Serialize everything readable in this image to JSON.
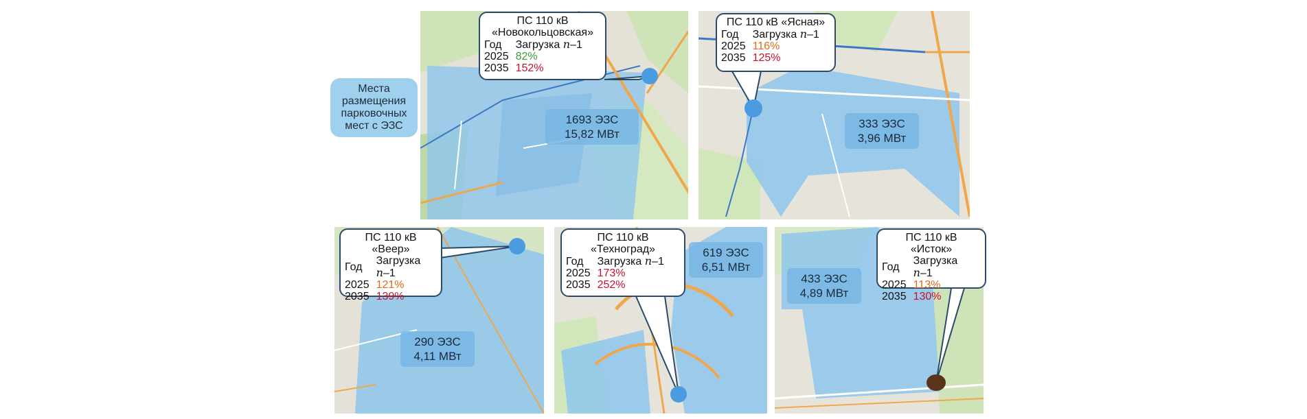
{
  "legend": {
    "text": [
      "Места",
      "размещения",
      "парковочных",
      "мест с ЭЗС"
    ]
  },
  "header": {
    "year": "Год",
    "load": "Загрузка",
    "n": "n",
    "minus_one": "–1"
  },
  "substations": [
    {
      "title": [
        "ПС 110 кВ",
        "«Новокольцовская»"
      ],
      "rows": [
        {
          "year": "2025",
          "value": "82%",
          "color": "green"
        },
        {
          "year": "2035",
          "value": "152%",
          "color": "red"
        }
      ],
      "ev": {
        "count": "1693 ЭЗС",
        "power": "15,82 МВт"
      }
    },
    {
      "title": [
        "ПС 110 кВ «Ясная»"
      ],
      "rows": [
        {
          "year": "2025",
          "value": "116%",
          "color": "orange"
        },
        {
          "year": "2035",
          "value": "125%",
          "color": "red"
        }
      ],
      "ev": {
        "count": "333 ЭЗС",
        "power": "3,96 МВт"
      }
    },
    {
      "title": [
        "ПС 110 кВ",
        "«Веер»"
      ],
      "rows": [
        {
          "year": "2025",
          "value": "121%",
          "color": "orange"
        },
        {
          "year": "2035",
          "value": "139%",
          "color": "red"
        }
      ],
      "ev": {
        "count": "290 ЭЗС",
        "power": "4,11 МВт"
      }
    },
    {
      "title": [
        "ПС 110 кВ",
        "«Техноград»"
      ],
      "rows": [
        {
          "year": "2025",
          "value": "173%",
          "color": "red"
        },
        {
          "year": "2035",
          "value": "252%",
          "color": "red"
        }
      ],
      "ev": {
        "count": "619 ЭЗС",
        "power": "6,51 МВт"
      }
    },
    {
      "title": [
        "ПС 110 кВ",
        "«Исток»"
      ],
      "rows": [
        {
          "year": "2025",
          "value": "113%",
          "color": "orange"
        },
        {
          "year": "2035",
          "value": "130%",
          "color": "red"
        }
      ],
      "ev": {
        "count": "433 ЭЗС",
        "power": "4,89 МВт"
      }
    }
  ],
  "colors": {
    "zone": "#8ec6ec",
    "substation_dot": "#4a9be0",
    "istok_dot": "#5a3418",
    "callout_border": "#2b4a6a"
  }
}
